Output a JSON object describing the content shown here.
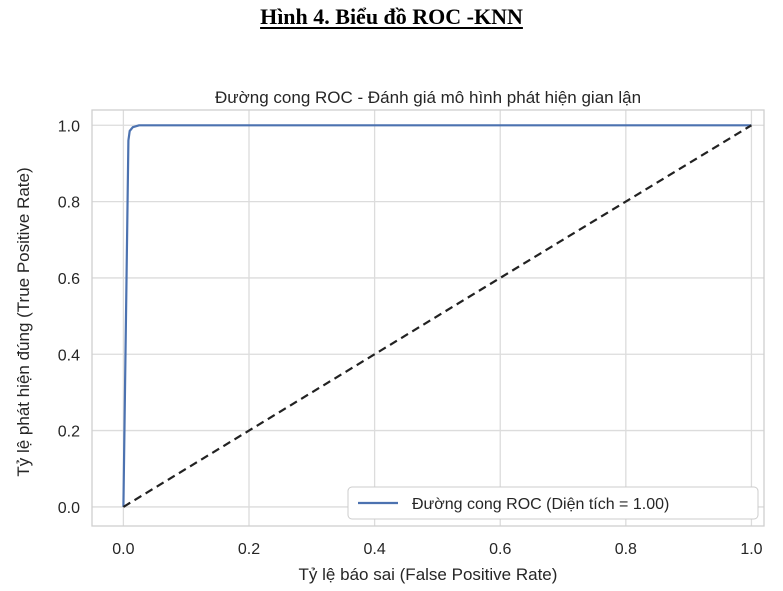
{
  "figure": {
    "caption": "Hình 4. Biểu đồ ROC -KNN"
  },
  "chart_data": {
    "type": "line",
    "title": "Đường cong ROC - Đánh giá mô hình phát hiện gian lận",
    "xlabel": "Tỷ lệ báo sai (False Positive Rate)",
    "ylabel": "Tỷ lệ phát hiện đúng (True Positive Rate)",
    "xlim": [
      -0.05,
      1.02
    ],
    "ylim": [
      -0.05,
      1.04
    ],
    "xticks": [
      0.0,
      0.2,
      0.4,
      0.6,
      0.8,
      1.0
    ],
    "yticks": [
      0.0,
      0.2,
      0.4,
      0.6,
      0.8,
      1.0
    ],
    "xtick_labels": [
      "0.0",
      "0.2",
      "0.4",
      "0.6",
      "0.8",
      "1.0"
    ],
    "ytick_labels": [
      "0.0",
      "0.2",
      "0.4",
      "0.6",
      "0.8",
      "1.0"
    ],
    "grid": true,
    "legend_position": "bottom-right",
    "series": [
      {
        "name": "Đường cong ROC (Diện tích = 1.00)",
        "color": "#4c72b0",
        "style": "solid",
        "x": [
          0.0,
          0.008,
          0.01,
          0.015,
          0.025,
          0.04,
          0.1,
          0.5,
          1.0
        ],
        "y": [
          0.0,
          0.96,
          0.985,
          0.995,
          1.0,
          1.0,
          1.0,
          1.0,
          1.0
        ]
      },
      {
        "color": "#222222",
        "style": "dashed",
        "x": [
          0.0,
          1.0
        ],
        "y": [
          0.0,
          1.0
        ]
      }
    ]
  }
}
